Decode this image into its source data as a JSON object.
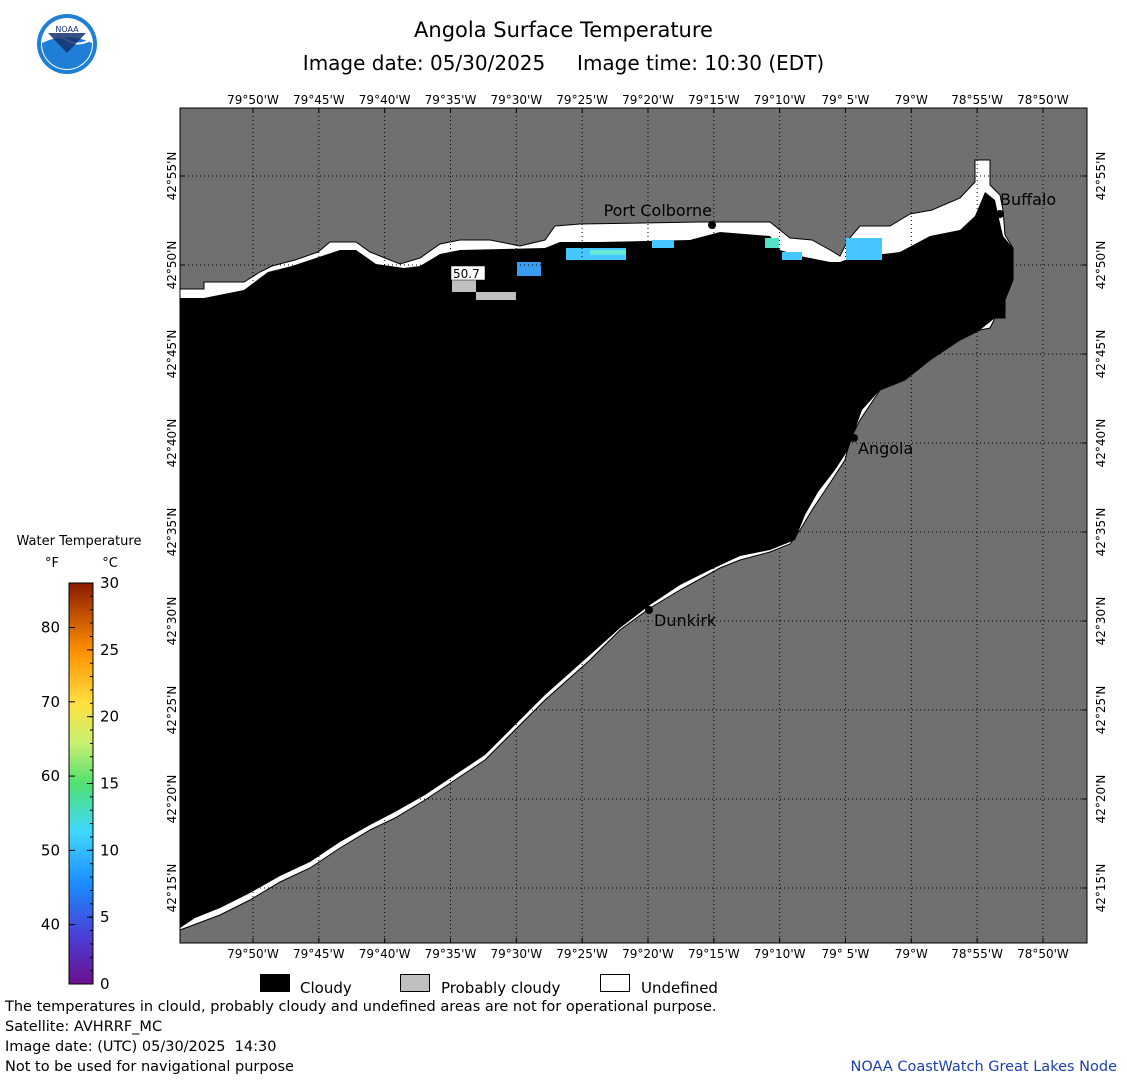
{
  "header": {
    "title": "Angola Surface Temperature",
    "subtitle": "Image date: 05/30/2025     Image time: 10:30 (EDT)",
    "logo_text": "NOAA"
  },
  "map": {
    "lon_labels": [
      "79°50'W",
      "79°45'W",
      "79°40'W",
      "79°35'W",
      "79°30'W",
      "79°25'W",
      "79°20'W",
      "79°15'W",
      "79°10'W",
      "79° 5'W",
      "79°W",
      "78°55'W",
      "78°50'W"
    ],
    "lat_labels": [
      "42°55'N",
      "42°50'N",
      "42°45'N",
      "42°40'N",
      "42°35'N",
      "42°30'N",
      "42°25'N",
      "42°20'N",
      "42°15'N"
    ],
    "cities": [
      {
        "name": "Port Colborne"
      },
      {
        "name": "Buffalo"
      },
      {
        "name": "Angola"
      },
      {
        "name": "Dunkirk"
      }
    ],
    "sample_value": "50.7",
    "colors": {
      "land": "#707070",
      "cloudy": "#000000",
      "probably_cloudy": "#c0c0c0",
      "undefined": "#ffffff"
    }
  },
  "colorbar": {
    "title": "Water Temperature",
    "unit_f": "°F",
    "unit_c": "°C",
    "f_ticks": [
      "80",
      "70",
      "60",
      "50",
      "40"
    ],
    "c_ticks": [
      "30",
      "25",
      "20",
      "15",
      "10",
      "5",
      "0"
    ]
  },
  "legend": {
    "cloudy": "Cloudy",
    "probably_cloudy": "Probably cloudy",
    "undefined": "Undefined"
  },
  "footer": {
    "line1": "The temperatures in clould, probably cloudy and undefined areas are not for operational purpose.",
    "line2": "Satellite: AVHRRF_MC",
    "line3": "Image date: (UTC) 05/30/2025  14:30",
    "line4": "Not to be used for navigational purpose",
    "credit": "NOAA CoastWatch Great Lakes Node"
  }
}
